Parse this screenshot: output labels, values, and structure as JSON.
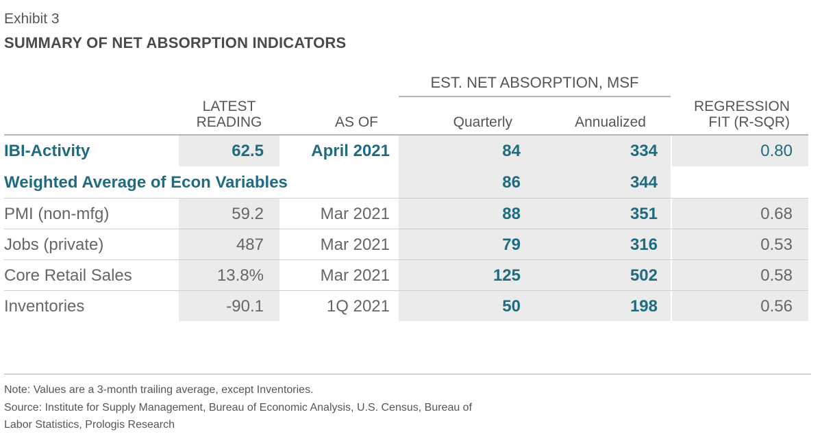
{
  "exhibit": "Exhibit 3",
  "title": "SUMMARY OF NET ABSORPTION INDICATORS",
  "group_header": "EST. NET ABSORPTION, MSF",
  "columns": {
    "latest": "LATEST READING",
    "as_of": "AS OF",
    "quarterly": "Quarterly",
    "annualized": "Annualized",
    "regression": "REGRESSION FIT (R-SQR)"
  },
  "rows": [
    {
      "label": "IBI-Activity",
      "latest": "62.5",
      "as_of": "April 2021",
      "quarterly": "84",
      "annualized": "334",
      "regression": "0.80"
    },
    {
      "label": "Weighted Average of Econ Variables",
      "latest": "",
      "as_of": "",
      "quarterly": "86",
      "annualized": "344",
      "regression": ""
    },
    {
      "label": "PMI (non-mfg)",
      "latest": "59.2",
      "as_of": "Mar 2021",
      "quarterly": "88",
      "annualized": "351",
      "regression": "0.68"
    },
    {
      "label": "Jobs (private)",
      "latest": "487",
      "as_of": "Mar 2021",
      "quarterly": "79",
      "annualized": "316",
      "regression": "0.53"
    },
    {
      "label": "Core Retail Sales",
      "latest": "13.8%",
      "as_of": "Mar 2021",
      "quarterly": "125",
      "annualized": "502",
      "regression": "0.58"
    },
    {
      "label": "Inventories",
      "latest": "-90.1",
      "as_of": "1Q 2021",
      "quarterly": "50",
      "annualized": "198",
      "regression": "0.56"
    }
  ],
  "notes": {
    "note": "Note: Values are a 3-month trailing average, except Inventories.",
    "source_line1": "Source: Institute for Supply Management, Bureau of Economic Analysis, U.S. Census, Bureau of",
    "source_line2": "Labor Statistics, Prologis Research"
  },
  "colors": {
    "accent": "#1f6b80",
    "shade": "#ebebeb",
    "text": "#555555"
  }
}
